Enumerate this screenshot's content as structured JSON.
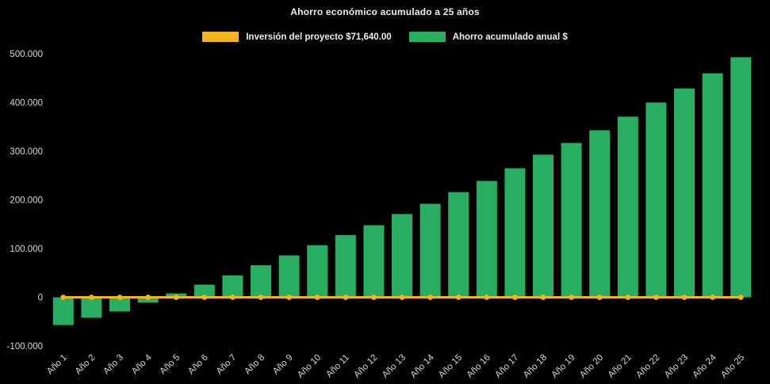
{
  "chart_data": {
    "type": "bar",
    "title": "Ahorro económico acumulado a 25 años",
    "xlabel": "",
    "ylabel": "",
    "categories": [
      "Año 1",
      "Año 2",
      "Año 3",
      "Año 4",
      "Año 5",
      "Año 6",
      "Año 7",
      "Año 8",
      "Año 9",
      "Año 10",
      "Año 11",
      "Año 12",
      "Año 13",
      "Año 14",
      "Año 15",
      "Año 16",
      "Año 17",
      "Año 18",
      "Año 19",
      "Año 20",
      "Año 21",
      "Año 22",
      "Año 23",
      "Año 24",
      "Año 25"
    ],
    "series": [
      {
        "name": "Inversión del proyecto $71,640.00",
        "type": "line",
        "color": "#F2B51D",
        "values": [
          0,
          0,
          0,
          0,
          0,
          0,
          0,
          0,
          0,
          0,
          0,
          0,
          0,
          0,
          0,
          0,
          0,
          0,
          0,
          0,
          0,
          0,
          0,
          0,
          0
        ]
      },
      {
        "name": "Ahorro acumulado anual $",
        "type": "bar",
        "color": "#27AE60",
        "values": [
          -57000,
          -42000,
          -29000,
          -11000,
          8000,
          26000,
          45000,
          66000,
          86000,
          107000,
          128000,
          148000,
          171000,
          192000,
          216000,
          239000,
          265000,
          293000,
          317000,
          343000,
          371000,
          400000,
          429000,
          460000,
          493000
        ]
      }
    ],
    "ylim": [
      -100000,
      500000
    ],
    "yticks": [
      500000,
      400000,
      300000,
      200000,
      100000,
      0,
      -100000
    ],
    "ytick_labels": [
      "500.000",
      "400.000",
      "300.000",
      "200.000",
      "100.000",
      "0",
      "-100.000"
    ],
    "grid": false,
    "legend_position": "top",
    "background": "#000000",
    "axis_text_color": "#d6d6d6"
  }
}
